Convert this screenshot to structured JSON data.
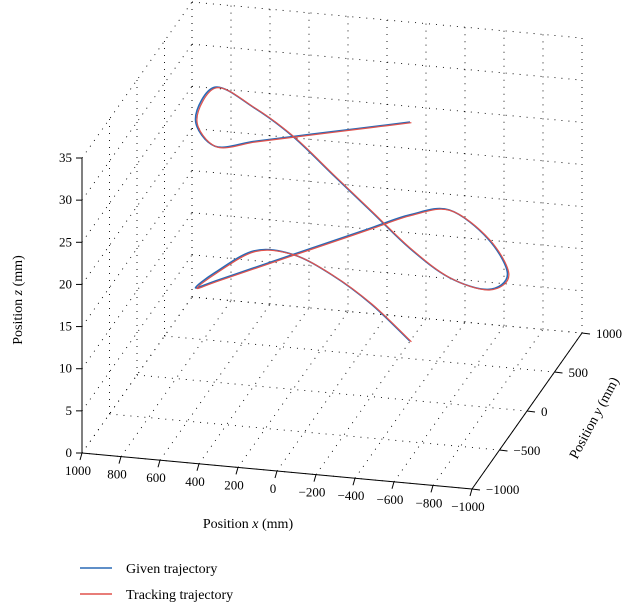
{
  "chart_data": {
    "type": "line",
    "projection": "3d",
    "x": {
      "label_prefix": "Position ",
      "label_var": "x",
      "label_suffix": " (mm)",
      "range": [
        -1000,
        1000
      ],
      "ticks": [
        1000,
        800,
        600,
        400,
        200,
        0,
        -200,
        -400,
        -600,
        -800,
        -1000
      ],
      "tick_labels": [
        "1000",
        "800",
        "600",
        "400",
        "200",
        "0",
        "−200",
        "−400",
        "−600",
        "−800",
        "−1000"
      ]
    },
    "y": {
      "label_prefix": "Position ",
      "label_var": "y",
      "label_suffix": " (mm)",
      "range": [
        -1000,
        1000
      ],
      "ticks": [
        1000,
        500,
        0,
        -500,
        -1000
      ],
      "tick_labels": [
        "1000",
        "500",
        "0",
        "−500",
        "−1000"
      ]
    },
    "z": {
      "label_prefix": "Position ",
      "label_var": "z",
      "label_suffix": " (mm)",
      "range": [
        0,
        35
      ],
      "ticks": [
        0,
        5,
        10,
        15,
        20,
        25,
        30,
        35
      ],
      "tick_labels": [
        "0",
        "5",
        "10",
        "15",
        "20",
        "25",
        "30",
        "35"
      ]
    },
    "grid": true,
    "legend_position": "bottom-left",
    "series": [
      {
        "name": "Given trajectory",
        "color": "#2a6ab6",
        "width": 1.6
      },
      {
        "name": "Tracking trajectory",
        "color": "#e0524c",
        "width": 1.2
      }
    ],
    "curve": {
      "description": "double loop",
      "x": [
        -400,
        -200,
        0,
        200,
        400,
        600,
        700,
        600,
        400,
        200,
        0,
        -200,
        -400,
        -600,
        -800,
        -900,
        -800,
        -600,
        -400,
        -200,
        0,
        200,
        400,
        600,
        700,
        600,
        400,
        200,
        0,
        -200,
        -400
      ],
      "y": [
        0,
        0,
        0,
        0,
        0,
        0,
        0,
        0,
        0,
        0,
        0,
        0,
        0,
        0,
        0,
        0,
        0,
        0,
        0,
        0,
        0,
        0,
        0,
        0,
        0,
        0,
        0,
        0,
        0,
        0,
        0
      ],
      "z": [
        33,
        32,
        31,
        30,
        29,
        28,
        31,
        35,
        33,
        30,
        26,
        22,
        18,
        15,
        14,
        16,
        20,
        23,
        22,
        20,
        18,
        16,
        14,
        12,
        11,
        13,
        16,
        16,
        14,
        11,
        7
      ]
    }
  }
}
